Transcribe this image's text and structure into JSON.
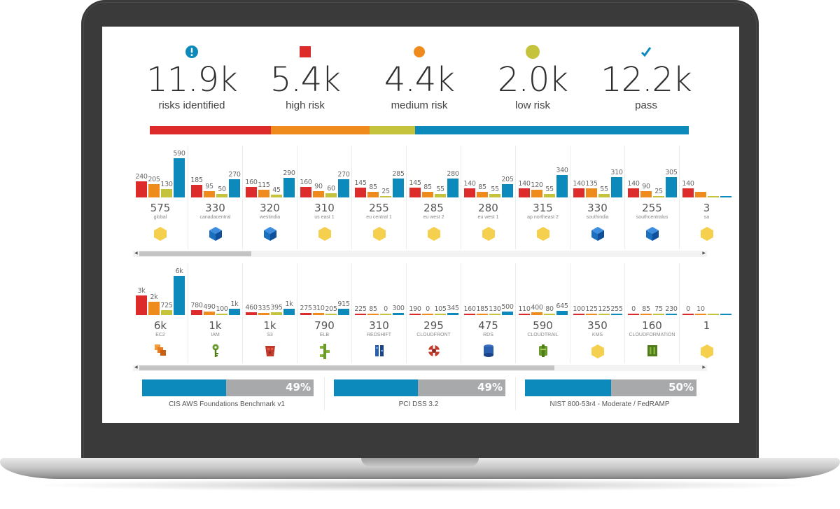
{
  "colors": {
    "high": "#dd2a2a",
    "medium": "#ef8a1c",
    "low": "#c4c33b",
    "pass": "#0d8abc",
    "info": "#0d8abc",
    "hex_yellow": "#f5d04f",
    "cube_blue": "#1a6fbf"
  },
  "kpis": [
    {
      "value": "11.9k",
      "label": "risks identified",
      "icon": "exclamation-circle-icon"
    },
    {
      "value": "5.4k",
      "label": "high risk",
      "icon": "red-square-icon"
    },
    {
      "value": "4.4k",
      "label": "medium risk",
      "icon": "orange-dot-icon"
    },
    {
      "value": "2.0k",
      "label": "low risk",
      "icon": "yellow-dot-icon"
    },
    {
      "value": "12.2k",
      "label": "pass",
      "icon": "checkmark-icon"
    }
  ],
  "risk_distribution": [
    {
      "level": "high",
      "count": 5400
    },
    {
      "level": "medium",
      "count": 4400
    },
    {
      "level": "low",
      "count": 2000
    },
    {
      "level": "pass",
      "count": 12200
    }
  ],
  "regions": [
    {
      "name": "global",
      "total": "575",
      "icon": "hexagon-icon",
      "bars": [
        {
          "label": "240",
          "v": 240
        },
        {
          "label": "205",
          "v": 205
        },
        {
          "label": "130",
          "v": 130
        },
        {
          "label": "590",
          "v": 590
        }
      ]
    },
    {
      "name": "canadacentral",
      "total": "330",
      "icon": "azure-cube-icon",
      "bars": [
        {
          "label": "185",
          "v": 185
        },
        {
          "label": "95",
          "v": 95
        },
        {
          "label": "50",
          "v": 50
        },
        {
          "label": "270",
          "v": 270
        }
      ]
    },
    {
      "name": "westindia",
      "total": "320",
      "icon": "azure-cube-icon",
      "bars": [
        {
          "label": "160",
          "v": 160
        },
        {
          "label": "115",
          "v": 115
        },
        {
          "label": "45",
          "v": 45
        },
        {
          "label": "290",
          "v": 290
        }
      ]
    },
    {
      "name": "us east 1",
      "total": "310",
      "icon": "hexagon-icon",
      "bars": [
        {
          "label": "160",
          "v": 160
        },
        {
          "label": "90",
          "v": 90
        },
        {
          "label": "60",
          "v": 60
        },
        {
          "label": "270",
          "v": 270
        }
      ]
    },
    {
      "name": "eu central 1",
      "total": "255",
      "icon": "hexagon-icon",
      "bars": [
        {
          "label": "145",
          "v": 145
        },
        {
          "label": "85",
          "v": 85
        },
        {
          "label": "25",
          "v": 25
        },
        {
          "label": "285",
          "v": 285
        }
      ]
    },
    {
      "name": "eu west 2",
      "total": "285",
      "icon": "hexagon-icon",
      "bars": [
        {
          "label": "145",
          "v": 145
        },
        {
          "label": "85",
          "v": 85
        },
        {
          "label": "55",
          "v": 55
        },
        {
          "label": "280",
          "v": 280
        }
      ]
    },
    {
      "name": "eu west 1",
      "total": "280",
      "icon": "hexagon-icon",
      "bars": [
        {
          "label": "140",
          "v": 140
        },
        {
          "label": "85",
          "v": 85
        },
        {
          "label": "55",
          "v": 55
        },
        {
          "label": "205",
          "v": 205
        }
      ]
    },
    {
      "name": "ap northeast 2",
      "total": "315",
      "icon": "hexagon-icon",
      "bars": [
        {
          "label": "140",
          "v": 140
        },
        {
          "label": "120",
          "v": 120
        },
        {
          "label": "55",
          "v": 55
        },
        {
          "label": "340",
          "v": 340
        }
      ]
    },
    {
      "name": "southindia",
      "total": "330",
      "icon": "azure-cube-icon",
      "bars": [
        {
          "label": "140",
          "v": 140
        },
        {
          "label": "135",
          "v": 135
        },
        {
          "label": "55",
          "v": 55
        },
        {
          "label": "310",
          "v": 310
        }
      ]
    },
    {
      "name": "southcentralus",
      "total": "255",
      "icon": "azure-cube-icon",
      "bars": [
        {
          "label": "140",
          "v": 140
        },
        {
          "label": "90",
          "v": 90
        },
        {
          "label": "25",
          "v": 25
        },
        {
          "label": "305",
          "v": 305
        }
      ]
    },
    {
      "name": "sa",
      "total": "3",
      "icon": "hexagon-icon",
      "bars": [
        {
          "label": "140",
          "v": 140
        },
        {
          "label": "",
          "v": 80
        },
        {
          "label": "",
          "v": 0
        },
        {
          "label": "",
          "v": 0
        }
      ]
    }
  ],
  "regions_scroll": {
    "position": 0.2
  },
  "services": [
    {
      "name": "EC2",
      "total": "6k",
      "icon": "ec2-icon",
      "bars": [
        {
          "label": "3k",
          "v": 3000
        },
        {
          "label": "2k",
          "v": 2000
        },
        {
          "label": "725",
          "v": 725
        },
        {
          "label": "6k",
          "v": 6000
        }
      ]
    },
    {
      "name": "IAM",
      "total": "1k",
      "icon": "iam-key-icon",
      "bars": [
        {
          "label": "780",
          "v": 780
        },
        {
          "label": "490",
          "v": 490
        },
        {
          "label": "100",
          "v": 100
        },
        {
          "label": "1k",
          "v": 1000
        }
      ]
    },
    {
      "name": "S3",
      "total": "1k",
      "icon": "s3-bucket-icon",
      "bars": [
        {
          "label": "460",
          "v": 460
        },
        {
          "label": "335",
          "v": 335
        },
        {
          "label": "395",
          "v": 395
        },
        {
          "label": "1k",
          "v": 1000
        }
      ]
    },
    {
      "name": "ELB",
      "total": "790",
      "icon": "elb-icon",
      "bars": [
        {
          "label": "275",
          "v": 275
        },
        {
          "label": "310",
          "v": 310
        },
        {
          "label": "205",
          "v": 205
        },
        {
          "label": "915",
          "v": 915
        }
      ]
    },
    {
      "name": "REDSHIFT",
      "total": "310",
      "icon": "redshift-icon",
      "bars": [
        {
          "label": "225",
          "v": 225
        },
        {
          "label": "85",
          "v": 85
        },
        {
          "label": "0",
          "v": 0
        },
        {
          "label": "300",
          "v": 300
        }
      ]
    },
    {
      "name": "CLOUDFRONT",
      "total": "295",
      "icon": "cloudfront-icon",
      "bars": [
        {
          "label": "190",
          "v": 190
        },
        {
          "label": "0",
          "v": 0
        },
        {
          "label": "105",
          "v": 105
        },
        {
          "label": "345",
          "v": 345
        }
      ]
    },
    {
      "name": "RDS",
      "total": "475",
      "icon": "rds-icon",
      "bars": [
        {
          "label": "160",
          "v": 160
        },
        {
          "label": "185",
          "v": 185
        },
        {
          "label": "130",
          "v": 130
        },
        {
          "label": "500",
          "v": 500
        }
      ]
    },
    {
      "name": "CLOUDTRAIL",
      "total": "590",
      "icon": "cloudtrail-icon",
      "bars": [
        {
          "label": "110",
          "v": 110
        },
        {
          "label": "400",
          "v": 400
        },
        {
          "label": "80",
          "v": 80
        },
        {
          "label": "645",
          "v": 645
        }
      ]
    },
    {
      "name": "KMS",
      "total": "350",
      "icon": "kms-hexagon-icon",
      "bars": [
        {
          "label": "100",
          "v": 100
        },
        {
          "label": "125",
          "v": 125
        },
        {
          "label": "125",
          "v": 125
        },
        {
          "label": "255",
          "v": 255
        }
      ]
    },
    {
      "name": "CLOUDFORMATION",
      "total": "160",
      "icon": "cloudformation-icon",
      "bars": [
        {
          "label": "0",
          "v": 0
        },
        {
          "label": "85",
          "v": 85
        },
        {
          "label": "75",
          "v": 75
        },
        {
          "label": "230",
          "v": 230
        }
      ]
    },
    {
      "name": "",
      "total": "1",
      "icon": "hexagon-icon",
      "bars": [
        {
          "label": "0",
          "v": 0
        },
        {
          "label": "10",
          "v": 10
        },
        {
          "label": "",
          "v": 0
        },
        {
          "label": "",
          "v": 0
        }
      ]
    }
  ],
  "services_scroll": {
    "position": 0.74
  },
  "compliance": [
    {
      "name": "CIS AWS Foundations Benchmark v1",
      "percent": "49%",
      "value": 0.49
    },
    {
      "name": "PCI DSS 3.2",
      "percent": "49%",
      "value": 0.49
    },
    {
      "name": "NIST 800-53r4 - Moderate / FedRAMP",
      "percent": "50%",
      "value": 0.5
    }
  ]
}
